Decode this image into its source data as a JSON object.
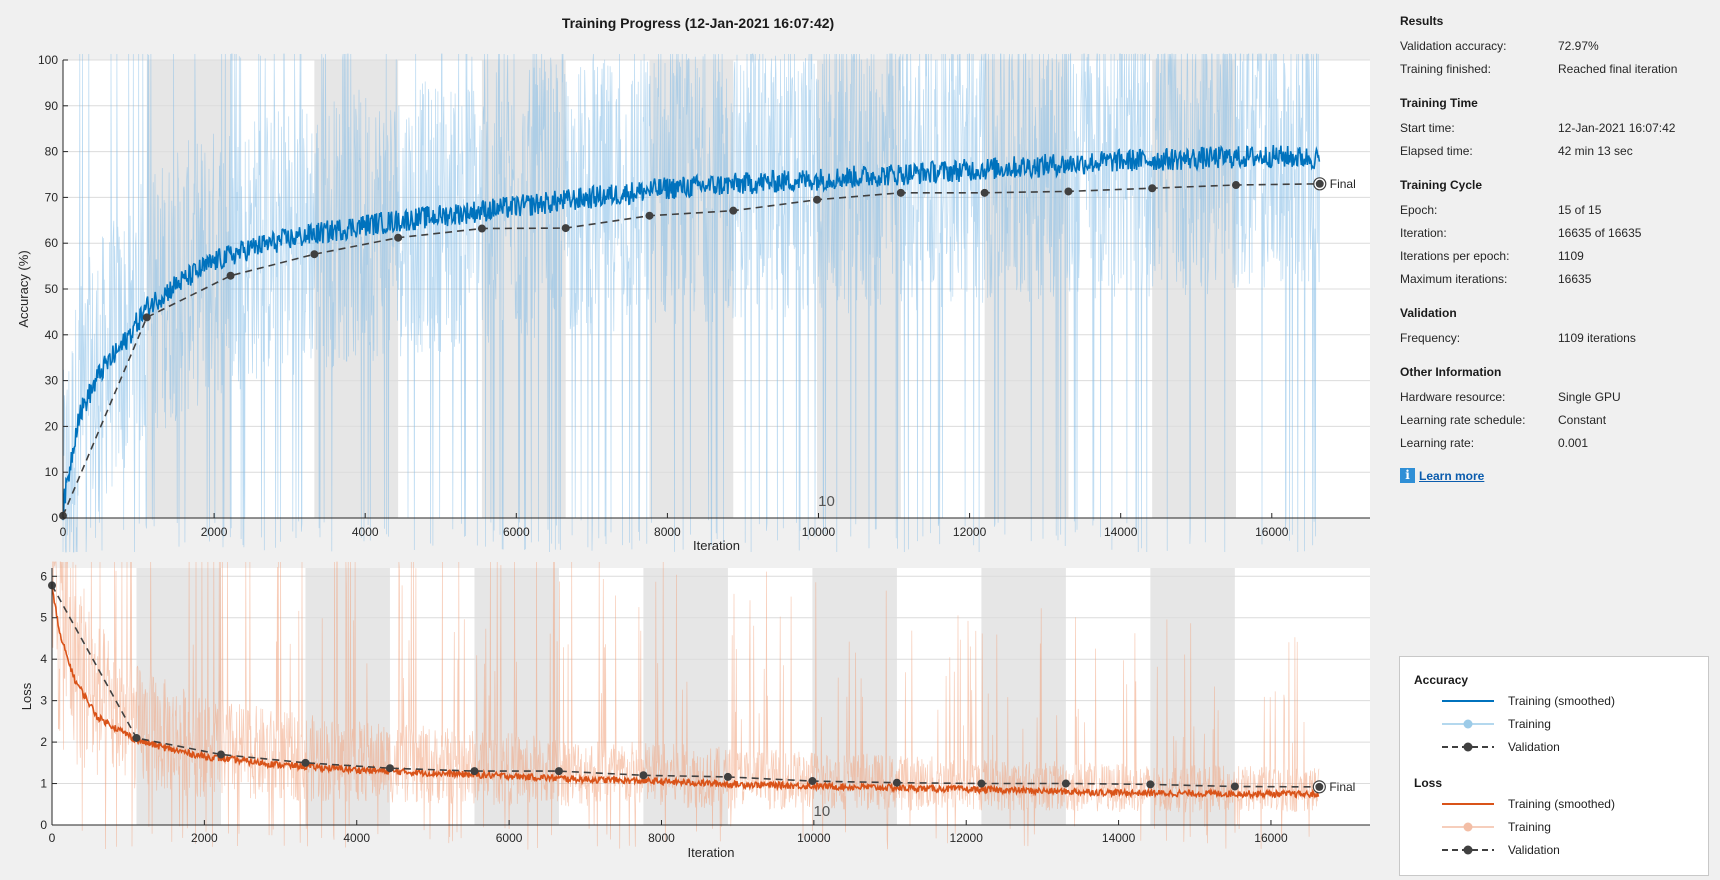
{
  "header": {
    "title": "Training Progress (12-Jan-2021 16:07:42)"
  },
  "info": {
    "sections": [
      {
        "title": "Results",
        "rows": [
          {
            "key": "Validation accuracy:",
            "value": "72.97%"
          },
          {
            "key": "Training finished:",
            "value": "Reached final iteration"
          }
        ]
      },
      {
        "title": "Training Time",
        "rows": [
          {
            "key": "Start time:",
            "value": "12-Jan-2021 16:07:42"
          },
          {
            "key": "Elapsed time:",
            "value": "42 min 13 sec"
          }
        ]
      },
      {
        "title": "Training Cycle",
        "rows": [
          {
            "key": "Epoch:",
            "value": "15 of 15"
          },
          {
            "key": "Iteration:",
            "value": "16635 of 16635"
          },
          {
            "key": "Iterations per epoch:",
            "value": "1109"
          },
          {
            "key": "Maximum iterations:",
            "value": "16635"
          }
        ]
      },
      {
        "title": "Validation",
        "rows": [
          {
            "key": "Frequency:",
            "value": "1109 iterations"
          }
        ]
      },
      {
        "title": "Other Information",
        "rows": [
          {
            "key": "Hardware resource:",
            "value": "Single GPU"
          },
          {
            "key": "Learning rate schedule:",
            "value": "Constant"
          },
          {
            "key": "Learning rate:",
            "value": "0.001"
          }
        ]
      }
    ],
    "learn_more": {
      "icon": "info-icon",
      "label": "Learn more"
    }
  },
  "legend": {
    "accuracy": {
      "title": "Accuracy",
      "items": [
        {
          "label": "Training (smoothed)",
          "style": "smoothed",
          "color": "#0072bd"
        },
        {
          "label": "Training",
          "style": "raw",
          "color": "#9ccbe8"
        },
        {
          "label": "Validation",
          "style": "validation",
          "color": "#404040"
        }
      ]
    },
    "loss": {
      "title": "Loss",
      "items": [
        {
          "label": "Training (smoothed)",
          "style": "smoothed",
          "color": "#d95319"
        },
        {
          "label": "Training",
          "style": "raw",
          "color": "#f3bea6"
        },
        {
          "label": "Validation",
          "style": "validation",
          "color": "#404040"
        }
      ]
    }
  },
  "chart_data": [
    {
      "type": "line",
      "panel": "accuracy",
      "xlabel": "Iteration",
      "ylabel": "Accuracy (%)",
      "xlim": [
        0,
        17300
      ],
      "ylim": [
        0,
        100
      ],
      "xticks": [
        0,
        2000,
        4000,
        6000,
        8000,
        10000,
        12000,
        14000,
        16000
      ],
      "yticks": [
        0,
        10,
        20,
        30,
        40,
        50,
        60,
        70,
        80,
        90,
        100
      ],
      "epoch_length": 1109,
      "epochs": 15,
      "epoch_annotation": {
        "label": "10",
        "x": 10000
      },
      "final_label": "Final",
      "colors": {
        "smoothed": "#0072bd",
        "raw": "#7fb9e6",
        "validation": "#404040",
        "shade": "#e6e6e6"
      },
      "series": [
        {
          "name": "Training (smoothed)",
          "x": [
            0,
            200,
            500,
            800,
            1109,
            1500,
            2000,
            2500,
            3000,
            4000,
            5000,
            6000,
            7000,
            8000,
            9000,
            10000,
            11000,
            12000,
            13000,
            14000,
            15000,
            16000,
            16635
          ],
          "values": [
            2,
            22,
            32,
            38,
            46,
            51,
            56,
            59,
            61,
            64,
            66,
            68,
            70,
            72,
            73,
            74,
            75,
            76,
            77,
            78,
            78.5,
            79,
            78.5
          ]
        },
        {
          "name": "Validation",
          "x": [
            0,
            1109,
            2218,
            3327,
            4436,
            5545,
            6654,
            7763,
            8872,
            9981,
            11090,
            12199,
            13308,
            14417,
            15526,
            16635
          ],
          "values": [
            0.5,
            43.8,
            52.9,
            57.6,
            61.2,
            63.2,
            63.3,
            66,
            67.1,
            69.5,
            71,
            71,
            71.3,
            72,
            72.7,
            72.97
          ]
        }
      ]
    },
    {
      "type": "line",
      "panel": "loss",
      "xlabel": "Iteration",
      "ylabel": "Loss",
      "xlim": [
        0,
        17300
      ],
      "ylim": [
        0,
        6.2
      ],
      "xticks": [
        0,
        2000,
        4000,
        6000,
        8000,
        10000,
        12000,
        14000,
        16000
      ],
      "yticks": [
        0,
        1,
        2,
        3,
        4,
        5,
        6
      ],
      "epoch_length": 1109,
      "epochs": 15,
      "epoch_annotation": {
        "label": "10",
        "x": 10000
      },
      "final_label": "Final",
      "colors": {
        "smoothed": "#d95319",
        "raw": "#f0a07a",
        "validation": "#404040",
        "shade": "#e6e6e6"
      },
      "series": [
        {
          "name": "Training (smoothed)",
          "x": [
            0,
            100,
            300,
            600,
            1109,
            1500,
            2000,
            3000,
            4000,
            5000,
            6000,
            7000,
            8000,
            9000,
            10000,
            11000,
            12000,
            13000,
            14000,
            15000,
            16000,
            16635
          ],
          "values": [
            5.8,
            4.6,
            3.5,
            2.6,
            2.05,
            1.85,
            1.65,
            1.45,
            1.33,
            1.25,
            1.18,
            1.1,
            1.05,
            0.98,
            0.94,
            0.9,
            0.86,
            0.82,
            0.78,
            0.76,
            0.75,
            0.74
          ]
        },
        {
          "name": "Validation",
          "x": [
            0,
            1109,
            2218,
            3327,
            4436,
            5545,
            6654,
            7763,
            8872,
            9981,
            11090,
            12199,
            13308,
            14417,
            15526,
            16635
          ],
          "values": [
            5.78,
            2.1,
            1.7,
            1.5,
            1.37,
            1.3,
            1.3,
            1.2,
            1.16,
            1.06,
            1.02,
            1.0,
            1.0,
            0.98,
            0.93,
            0.92
          ]
        }
      ]
    }
  ]
}
